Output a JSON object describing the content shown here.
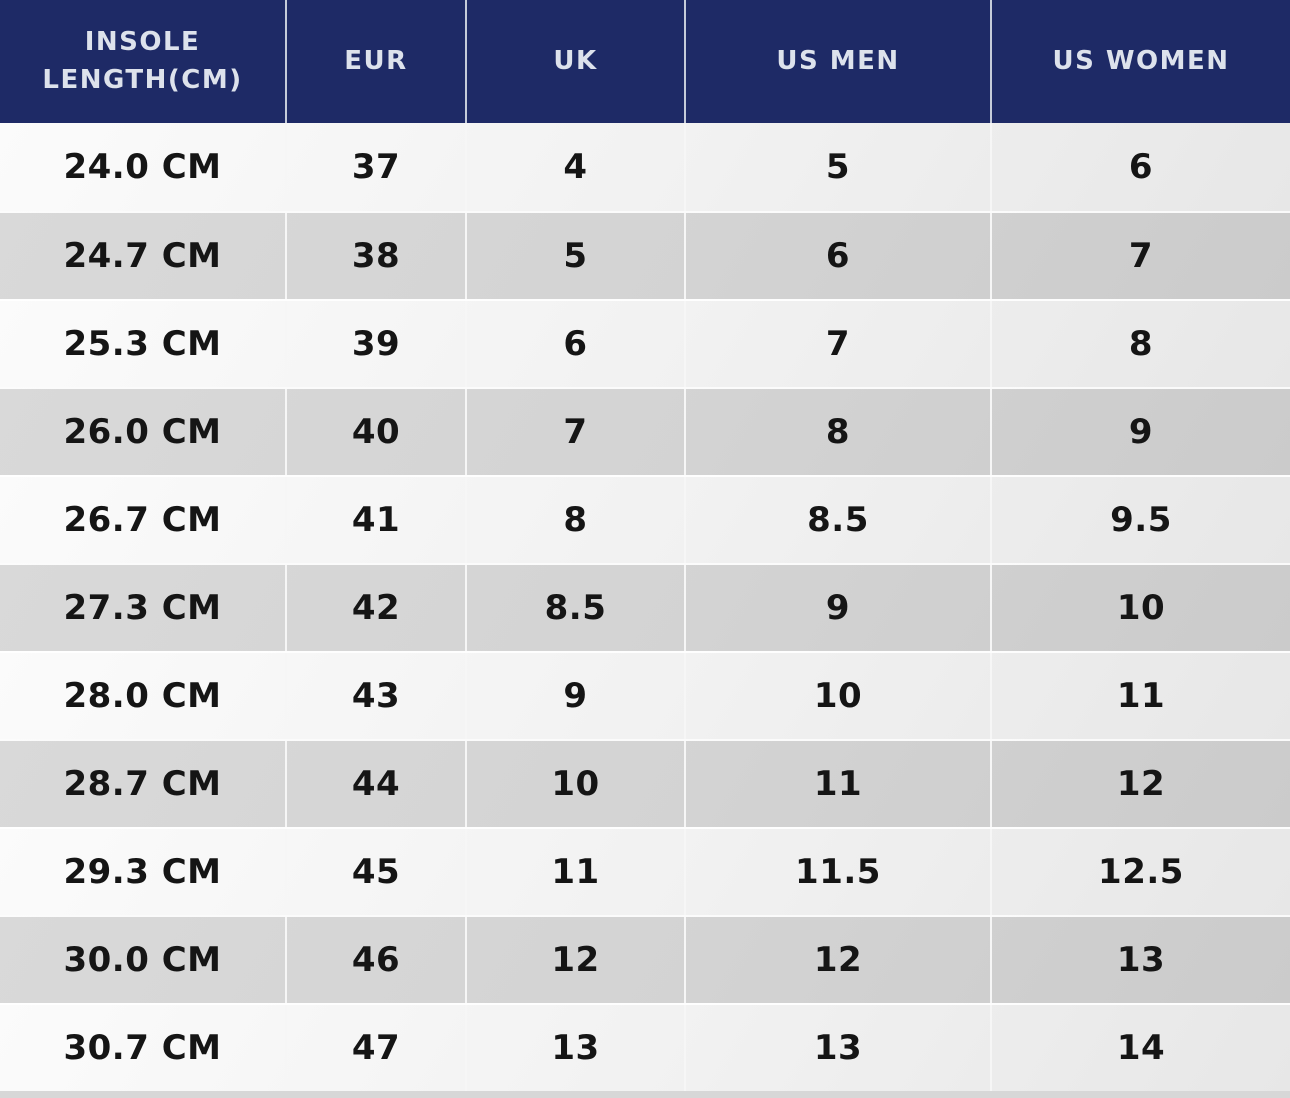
{
  "chart_data": {
    "type": "table",
    "columns": [
      "INSOLE LENGTH(CM)",
      "EUR",
      "UK",
      "US MEN",
      "US WOMEN"
    ],
    "rows": [
      [
        "24.0 CM",
        "37",
        "4",
        "5",
        "6"
      ],
      [
        "24.7 CM",
        "38",
        "5",
        "6",
        "7"
      ],
      [
        "25.3 CM",
        "39",
        "6",
        "7",
        "8"
      ],
      [
        "26.0 CM",
        "40",
        "7",
        "8",
        "9"
      ],
      [
        "26.7 CM",
        "41",
        "8",
        "8.5",
        "9.5"
      ],
      [
        "27.3 CM",
        "42",
        "8.5",
        "9",
        "10"
      ],
      [
        "28.0 CM",
        "43",
        "9",
        "10",
        "11"
      ],
      [
        "28.7 CM",
        "44",
        "10",
        "11",
        "12"
      ],
      [
        "29.3 CM",
        "45",
        "11",
        "11.5",
        "12.5"
      ],
      [
        "30.0 CM",
        "46",
        "12",
        "12",
        "13"
      ],
      [
        "30.7 CM",
        "47",
        "13",
        "13",
        "14"
      ]
    ]
  },
  "colors": {
    "header_bg": "#1e2a66",
    "header_text": "#dde2ec",
    "header_divider": "#c6ccda",
    "row_light_start": "#fbfbfb",
    "row_light_end": "#e7e7e7",
    "row_gray_start": "#d9d9d9",
    "row_gray_end": "#cbcbcb",
    "cell_divider": "#f6f6f6",
    "body_text": "#151515",
    "bottom_strip": "#d7d7d7"
  }
}
